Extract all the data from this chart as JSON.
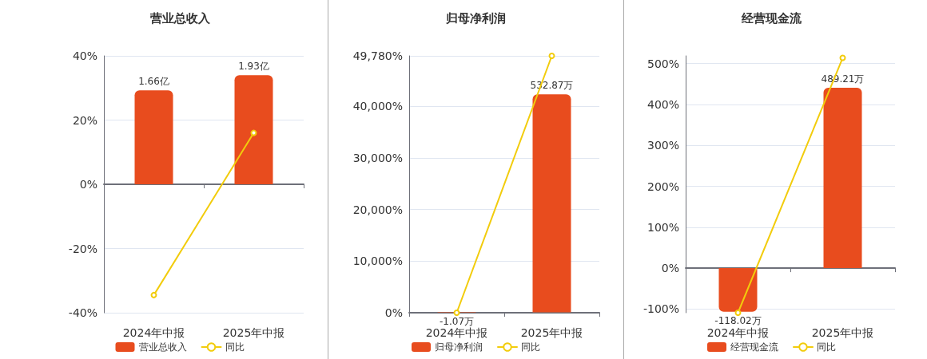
{
  "chart_data": [
    {
      "type": "bar",
      "title": "营业总收入",
      "categories": [
        "2024年中报",
        "2025年中报"
      ],
      "ylim": [
        -40,
        40
      ],
      "yticks": [
        {
          "value": -40,
          "label": "-40%"
        },
        {
          "value": -20,
          "label": "-20%"
        },
        {
          "value": 0,
          "label": "0%"
        },
        {
          "value": 20,
          "label": "20%"
        },
        {
          "value": 40,
          "label": "40%"
        }
      ],
      "grid": "y",
      "legend": "bottom",
      "marker": "circle",
      "series": [
        {
          "name": "营业总收入",
          "axis": "y2",
          "color": "#e84c1e",
          "values": [
            1.66,
            1.93
          ],
          "value_labels": [
            "1.66亿",
            "1.93亿"
          ]
        },
        {
          "name": "同比",
          "type": "line",
          "color": "#f2cc0c",
          "values": [
            -34.5,
            16.0
          ]
        }
      ]
    },
    {
      "type": "bar",
      "title": "归母净利润",
      "categories": [
        "2024年中报",
        "2025年中报"
      ],
      "ylim": [
        0,
        49780
      ],
      "yticks": [
        {
          "value": 0,
          "label": "0%"
        },
        {
          "value": 10000,
          "label": "10,000%"
        },
        {
          "value": 20000,
          "label": "20,000%"
        },
        {
          "value": 30000,
          "label": "30,000%"
        },
        {
          "value": 40000,
          "label": "40,000%"
        },
        {
          "value": 49780,
          "label": "49,780%"
        }
      ],
      "grid": "y",
      "legend": "bottom",
      "marker": "circle",
      "series": [
        {
          "name": "归母净利润",
          "axis": "y2",
          "color": "#e84c1e",
          "values": [
            -1.07,
            532.87
          ],
          "value_labels": [
            "-1.07万",
            "532.87万"
          ]
        },
        {
          "name": "同比",
          "type": "line",
          "color": "#f2cc0c",
          "values": [
            0,
            49780
          ]
        }
      ]
    },
    {
      "type": "bar",
      "title": "经营现金流",
      "categories": [
        "2024年中报",
        "2025年中报"
      ],
      "ylim": [
        -109,
        519
      ],
      "yticks": [
        {
          "value": -100,
          "label": "-100%"
        },
        {
          "value": 0,
          "label": "0%"
        },
        {
          "value": 100,
          "label": "100%"
        },
        {
          "value": 200,
          "label": "200%"
        },
        {
          "value": 300,
          "label": "300%"
        },
        {
          "value": 400,
          "label": "400%"
        },
        {
          "value": 500,
          "label": "500%"
        }
      ],
      "grid": "y",
      "legend": "bottom",
      "marker": "circle",
      "series": [
        {
          "name": "经营现金流",
          "axis": "y2",
          "color": "#e84c1e",
          "values": [
            -118.02,
            489.21
          ],
          "value_labels": [
            "-118.02万",
            "489.21万"
          ]
        },
        {
          "name": "同比",
          "type": "line",
          "color": "#f2cc0c",
          "values": [
            -109,
            514
          ]
        }
      ]
    }
  ]
}
